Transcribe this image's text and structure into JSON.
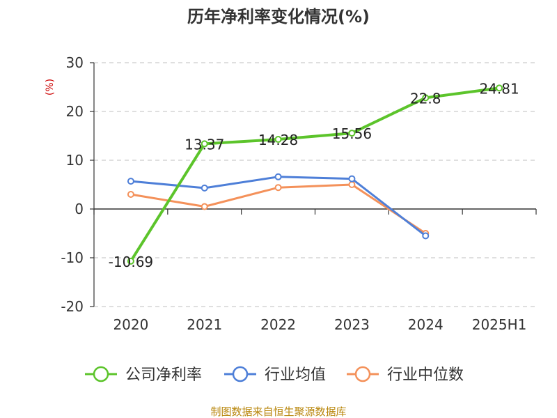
{
  "chart_data": {
    "type": "line",
    "title": "历年净利率变化情况(%)",
    "ylabel": "(%)",
    "categories": [
      "2020",
      "2021",
      "2022",
      "2023",
      "2024",
      "2025H1"
    ],
    "ylim": [
      -20,
      30
    ],
    "yticks": [
      30,
      20,
      10,
      0,
      -10,
      -20
    ],
    "ytick_labels": [
      "30",
      "20",
      "10",
      "0",
      "-10",
      "-20"
    ],
    "grid": true,
    "legend_position": "bottom",
    "series": [
      {
        "name": "公司净利率",
        "color": "#5cc42b",
        "values": [
          -10.69,
          13.37,
          14.28,
          15.56,
          22.8,
          24.81
        ],
        "labels": [
          "-10.69",
          "13.37",
          "14.28",
          "15.56",
          "22.8",
          "24.81"
        ]
      },
      {
        "name": "行业均值",
        "color": "#4e7fd8",
        "values": [
          5.7,
          4.3,
          6.6,
          6.2,
          -5.5,
          null
        ]
      },
      {
        "name": "行业中位数",
        "color": "#f4915a",
        "values": [
          3.0,
          0.5,
          4.4,
          5.0,
          -5.0,
          null
        ]
      }
    ]
  },
  "footer": {
    "source": "制图数据来自恒生聚源数据库"
  }
}
